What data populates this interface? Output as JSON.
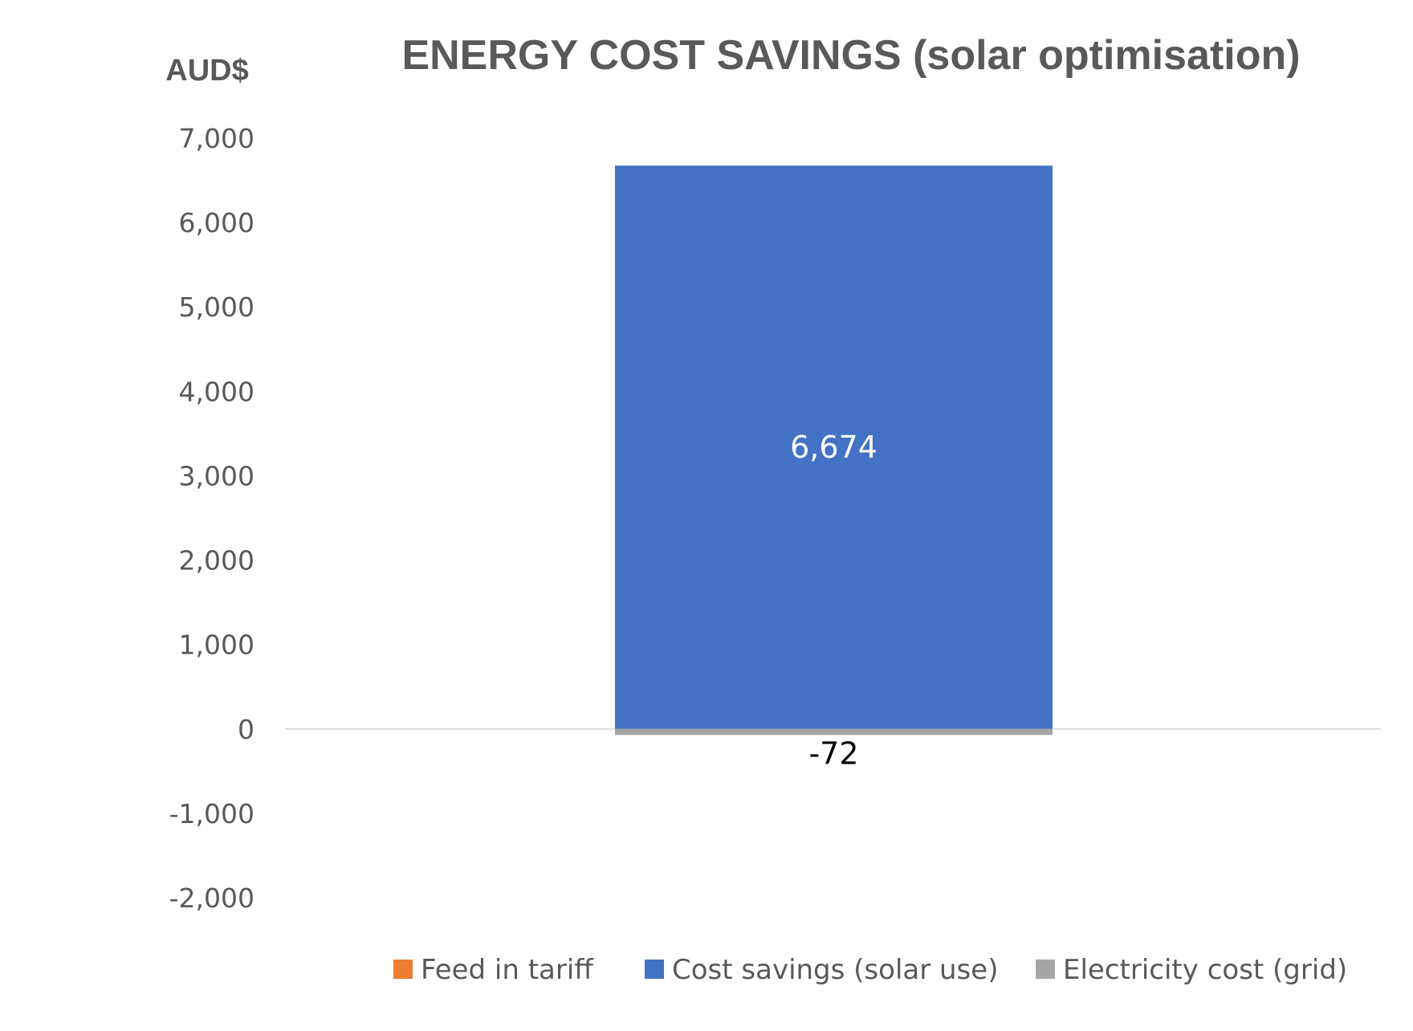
{
  "chart_data": {
    "type": "bar",
    "stacked": true,
    "title": "ENERGY COST SAVINGS (solar optimisation)",
    "ylabel": "AUD$",
    "xlabel": "",
    "ylim": [
      -2000,
      7000
    ],
    "yticks": [
      7000,
      6000,
      5000,
      4000,
      3000,
      2000,
      1000,
      0,
      -1000,
      -2000
    ],
    "ytick_labels": [
      "7,000",
      "6,000",
      "5,000",
      "4,000",
      "3,000",
      "2,000",
      "1,000",
      "0",
      "-1,000",
      "-2,000"
    ],
    "categories": [
      ""
    ],
    "series": [
      {
        "name": "Feed in tariff",
        "color": "#ED7D31",
        "values": [
          0
        ],
        "labels": [
          ""
        ]
      },
      {
        "name": "Cost savings (solar use)",
        "color": "#4472C4",
        "values": [
          6674
        ],
        "labels": [
          "6,674"
        ]
      },
      {
        "name": "Electricity cost (grid)",
        "color": "#A5A5A5",
        "values": [
          -72
        ],
        "labels": [
          "-72"
        ]
      }
    ],
    "legend_position": "bottom",
    "grid": false
  }
}
